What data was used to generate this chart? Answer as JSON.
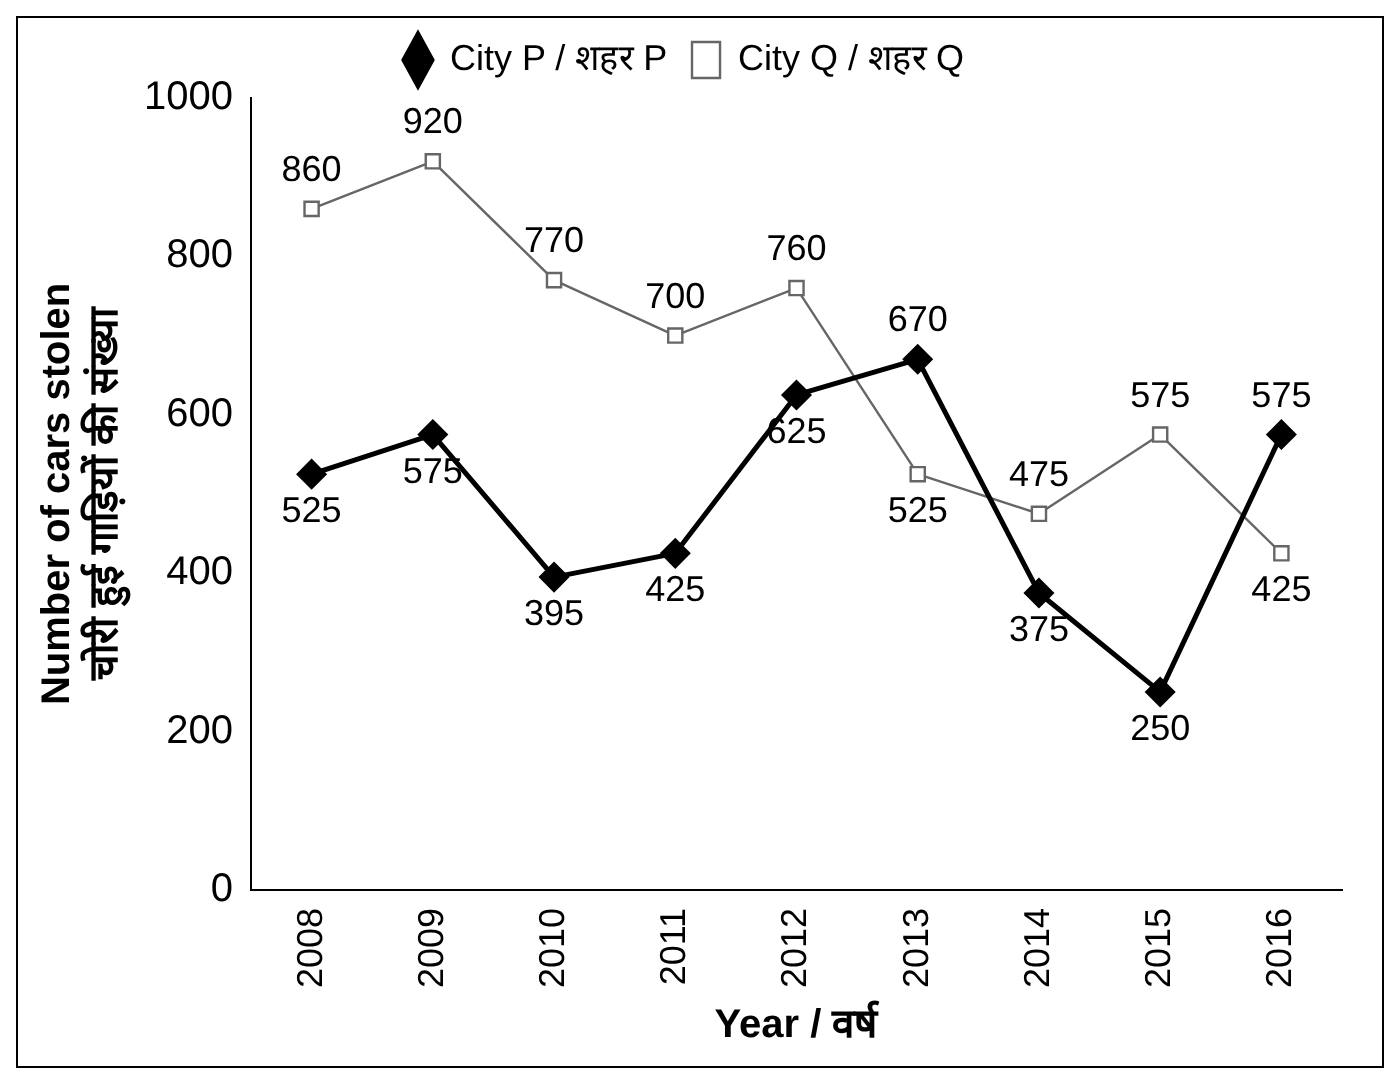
{
  "chart_data": {
    "type": "line",
    "xlabel": "Year / वर्ष",
    "ylabel": "Number of cars stolen\nचोरी हुई गाड़ियों की संख्या",
    "categories": [
      "2008",
      "2009",
      "2010",
      "2011",
      "2012",
      "2013",
      "2014",
      "2015",
      "2016"
    ],
    "series": [
      {
        "name": "City P / शहर P",
        "color": "#000000",
        "marker": "diamond",
        "values": [
          525,
          575,
          395,
          425,
          625,
          670,
          375,
          250,
          575
        ]
      },
      {
        "name": "City Q / शहर Q",
        "color": "#666666",
        "marker": "square",
        "values": [
          860,
          920,
          770,
          700,
          760,
          525,
          475,
          575,
          425
        ]
      }
    ],
    "ylim": [
      0,
      1000
    ],
    "yticks": [
      0,
      200,
      400,
      600,
      800,
      1000
    ],
    "grid": false,
    "legend": "top",
    "data_labels": true
  }
}
